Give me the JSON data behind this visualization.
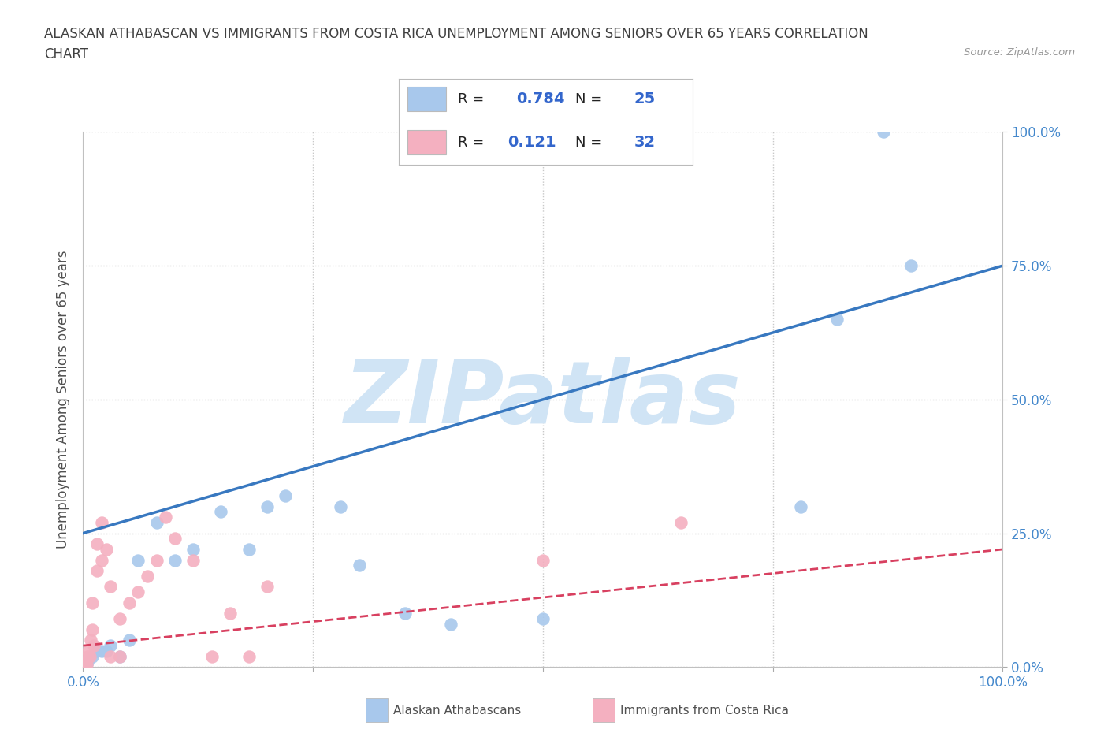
{
  "title_line1": "ALASKAN ATHABASCAN VS IMMIGRANTS FROM COSTA RICA UNEMPLOYMENT AMONG SENIORS OVER 65 YEARS CORRELATION",
  "title_line2": "CHART",
  "source": "Source: ZipAtlas.com",
  "ylabel": "Unemployment Among Seniors over 65 years",
  "xlim": [
    0,
    1
  ],
  "ylim": [
    0,
    1
  ],
  "xticks": [
    0.0,
    0.25,
    0.5,
    0.75,
    1.0
  ],
  "yticks": [
    0.0,
    0.25,
    0.5,
    0.75,
    1.0
  ],
  "xticklabels_bottom": [
    "0.0%",
    "",
    "",
    "",
    "100.0%"
  ],
  "yticklabels_right": [
    "0.0%",
    "25.0%",
    "50.0%",
    "75.0%",
    "100.0%"
  ],
  "blue_color": "#a8c8ec",
  "pink_color": "#f4b0c0",
  "blue_line_color": "#3878c0",
  "pink_line_color": "#d84060",
  "blue_R": "0.784",
  "blue_N": "25",
  "pink_R": "0.121",
  "pink_N": "32",
  "watermark": "ZIPatlas",
  "watermark_color": "#d0e4f5",
  "blue_scatter_x": [
    0.005,
    0.01,
    0.015,
    0.02,
    0.025,
    0.03,
    0.04,
    0.05,
    0.06,
    0.08,
    0.1,
    0.12,
    0.15,
    0.18,
    0.2,
    0.22,
    0.28,
    0.3,
    0.35,
    0.4,
    0.5,
    0.78,
    0.82,
    0.87,
    0.9
  ],
  "blue_scatter_y": [
    0.01,
    0.02,
    0.03,
    0.03,
    0.03,
    0.04,
    0.02,
    0.05,
    0.2,
    0.27,
    0.2,
    0.22,
    0.29,
    0.22,
    0.3,
    0.32,
    0.3,
    0.19,
    0.1,
    0.08,
    0.09,
    0.3,
    0.65,
    1.0,
    0.75
  ],
  "pink_scatter_x": [
    0.002,
    0.003,
    0.004,
    0.005,
    0.006,
    0.007,
    0.008,
    0.01,
    0.01,
    0.012,
    0.015,
    0.015,
    0.02,
    0.02,
    0.025,
    0.03,
    0.03,
    0.04,
    0.04,
    0.05,
    0.06,
    0.07,
    0.08,
    0.09,
    0.1,
    0.12,
    0.14,
    0.16,
    0.18,
    0.2,
    0.5,
    0.65
  ],
  "pink_scatter_y": [
    0.005,
    0.01,
    0.005,
    0.02,
    0.03,
    0.02,
    0.05,
    0.07,
    0.12,
    0.04,
    0.18,
    0.23,
    0.2,
    0.27,
    0.22,
    0.02,
    0.15,
    0.02,
    0.09,
    0.12,
    0.14,
    0.17,
    0.2,
    0.28,
    0.24,
    0.2,
    0.02,
    0.1,
    0.02,
    0.15,
    0.2,
    0.27
  ],
  "blue_line_x": [
    0.0,
    1.0
  ],
  "blue_line_y": [
    0.25,
    0.75
  ],
  "pink_line_x": [
    0.0,
    1.0
  ],
  "pink_line_y": [
    0.04,
    0.22
  ],
  "legend_label_blue": "Alaskan Athabascans",
  "legend_label_pink": "Immigrants from Costa Rica",
  "background_color": "#ffffff",
  "grid_color": "#c8c8c8",
  "title_color": "#404040",
  "axis_label_color": "#505050",
  "tick_color": "#4488cc",
  "stat_label_color": "#222222",
  "stat_value_color": "#3366cc"
}
